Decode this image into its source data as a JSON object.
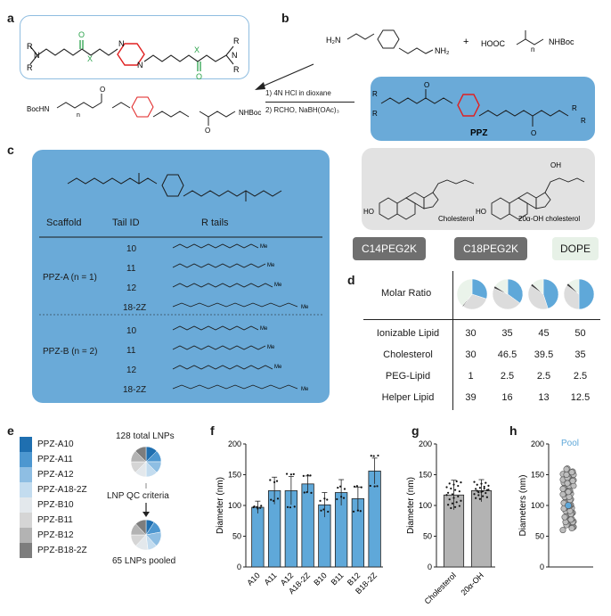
{
  "panels": {
    "a": "a",
    "b": "b",
    "c": "c",
    "d": "d",
    "e": "e",
    "f": "f",
    "g": "g",
    "h": "h"
  },
  "colors": {
    "accent_blue": "#5fa8d9",
    "light_blue_box": "#cfe3f2",
    "panel_box": "#6aaad8",
    "grey_box": "#e2e2e2",
    "dark_grey": "#6f6f6f",
    "dope_box": "#e7f1e7",
    "piperazine_red": "#e02020",
    "carbonyl_green": "#2aa24a"
  },
  "chem": {
    "struct_a_R": "R",
    "struct_a_N": "N",
    "struct_a_X": "X",
    "struct_a_O": "O",
    "reagent_left": "H₂N",
    "reagent_right_amine": "NH₂",
    "plus": "+",
    "acid": "HOOC",
    "acid_tail": "NHBoc",
    "n": "n",
    "boc_left": "BocHN",
    "boc_right": "NHBoc",
    "step1": "1) 4N HCl in dioxane",
    "step2": "2) RCHO, NaBH(OAc)₃",
    "ppz_label": "PPZ",
    "H": "H",
    "cholesterol": "Cholesterol",
    "oh_cholesterol": "20α-OH cholesterol",
    "HO": "HO",
    "OH": "OH",
    "c14": "C14PEG2K",
    "c18": "C18PEG2K",
    "dope": "DOPE"
  },
  "table_c": {
    "headers": [
      "Scaffold",
      "Tail ID",
      "R tails"
    ],
    "groups": [
      {
        "scaffold": "PPZ-A (n = 1)",
        "tails": [
          "10",
          "11",
          "12",
          "18-2Z"
        ]
      },
      {
        "scaffold": "PPZ-B (n = 2)",
        "tails": [
          "10",
          "11",
          "12",
          "18-2Z"
        ]
      }
    ],
    "me": "Me"
  },
  "table_d": {
    "header": "Molar Ratio",
    "rows": [
      {
        "label": "Ionizable Lipid",
        "values": [
          "30",
          "35",
          "45",
          "50"
        ]
      },
      {
        "label": "Cholesterol",
        "values": [
          "30",
          "46.5",
          "39.5",
          "35"
        ]
      },
      {
        "label": "PEG-Lipid",
        "values": [
          "1",
          "2.5",
          "2.5",
          "2.5"
        ]
      },
      {
        "label": "Helper Lipid",
        "values": [
          "39",
          "16",
          "13",
          "12.5"
        ]
      }
    ]
  },
  "panel_e": {
    "legend": [
      {
        "label": "PPZ-A10",
        "color": "#1f6fb0"
      },
      {
        "label": "PPZ-A11",
        "color": "#4d97d0"
      },
      {
        "label": "PPZ-A12",
        "color": "#8ebee3"
      },
      {
        "label": "PPZ-A18-2Z",
        "color": "#c3dcef"
      },
      {
        "label": "PPZ-B10",
        "color": "#e3e8ec"
      },
      {
        "label": "PPZ-B11",
        "color": "#d5d5d5"
      },
      {
        "label": "PPZ-B12",
        "color": "#b3b3b3"
      },
      {
        "label": "PPZ-B18-2Z",
        "color": "#7d7d7d"
      }
    ],
    "top_text": "128 total LNPs",
    "mid_text": "LNP QC criteria",
    "bottom_text": "65 LNPs pooled"
  },
  "chart_data": [
    {
      "type": "bar",
      "panel": "f",
      "categories": [
        "A10",
        "A11",
        "A12",
        "A18-2Z",
        "B10",
        "B11",
        "B12",
        "B18-2Z"
      ],
      "values": [
        97,
        124,
        124,
        135,
        101,
        121,
        111,
        156
      ],
      "errors": [
        10,
        22,
        23,
        13,
        20,
        21,
        19,
        21
      ],
      "ylabel": "Diameter (nm)",
      "ylim": [
        0,
        200
      ],
      "yticks": [
        0,
        50,
        100,
        150,
        200
      ]
    },
    {
      "type": "bar",
      "panel": "g",
      "categories": [
        "Cholesterol",
        "20α-OH"
      ],
      "values": [
        117,
        124
      ],
      "errors": [
        24,
        18
      ],
      "ylabel": "Diameter (nm)",
      "ylim": [
        0,
        200
      ],
      "yticks": [
        0,
        50,
        100,
        150,
        200
      ]
    },
    {
      "type": "scatter",
      "panel": "h",
      "ylabel": "Diameters (nm)",
      "ylim": [
        0,
        200
      ],
      "yticks": [
        0,
        50,
        100,
        150,
        200
      ],
      "annotation": "Pool",
      "pool_value": 100
    }
  ]
}
